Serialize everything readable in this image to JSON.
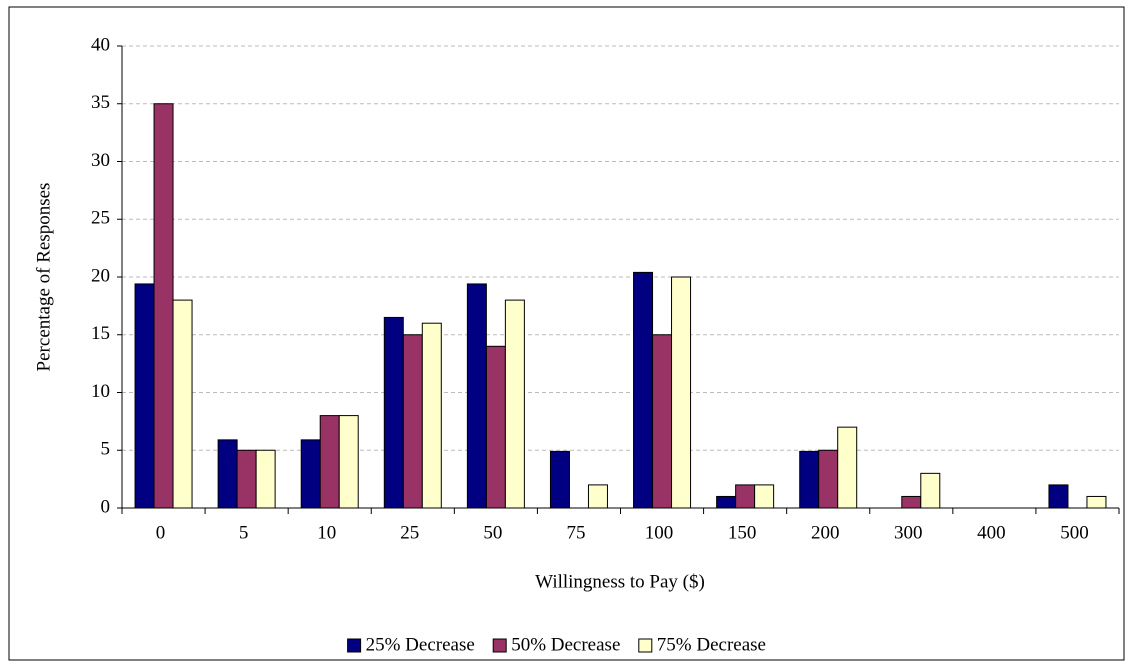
{
  "chart_data": {
    "type": "bar",
    "x_label": "Willingness to Pay ($)",
    "y_label": "Percentage of Responses",
    "categories": [
      "0",
      "5",
      "10",
      "25",
      "50",
      "75",
      "100",
      "150",
      "200",
      "300",
      "400",
      "500"
    ],
    "series": [
      {
        "name": "25% Decrease",
        "color": "#000080",
        "values": [
          19.4,
          5.9,
          5.9,
          16.5,
          19.4,
          4.9,
          20.4,
          1,
          4.9,
          0,
          0,
          2
        ]
      },
      {
        "name": "50% Decrease",
        "color": "#993366",
        "values": [
          35,
          5,
          8,
          15,
          14,
          0,
          15,
          2,
          5,
          1,
          0,
          0
        ]
      },
      {
        "name": "75% Decrease",
        "color": "#ffffcc",
        "values": [
          18,
          5,
          8,
          16,
          18,
          2,
          20,
          2,
          7,
          3,
          0,
          1
        ]
      }
    ],
    "ylim": [
      0,
      40
    ],
    "yticks": [
      0,
      5,
      10,
      15,
      20,
      25,
      30,
      35,
      40
    ],
    "grid": true,
    "legend": "bottom"
  }
}
